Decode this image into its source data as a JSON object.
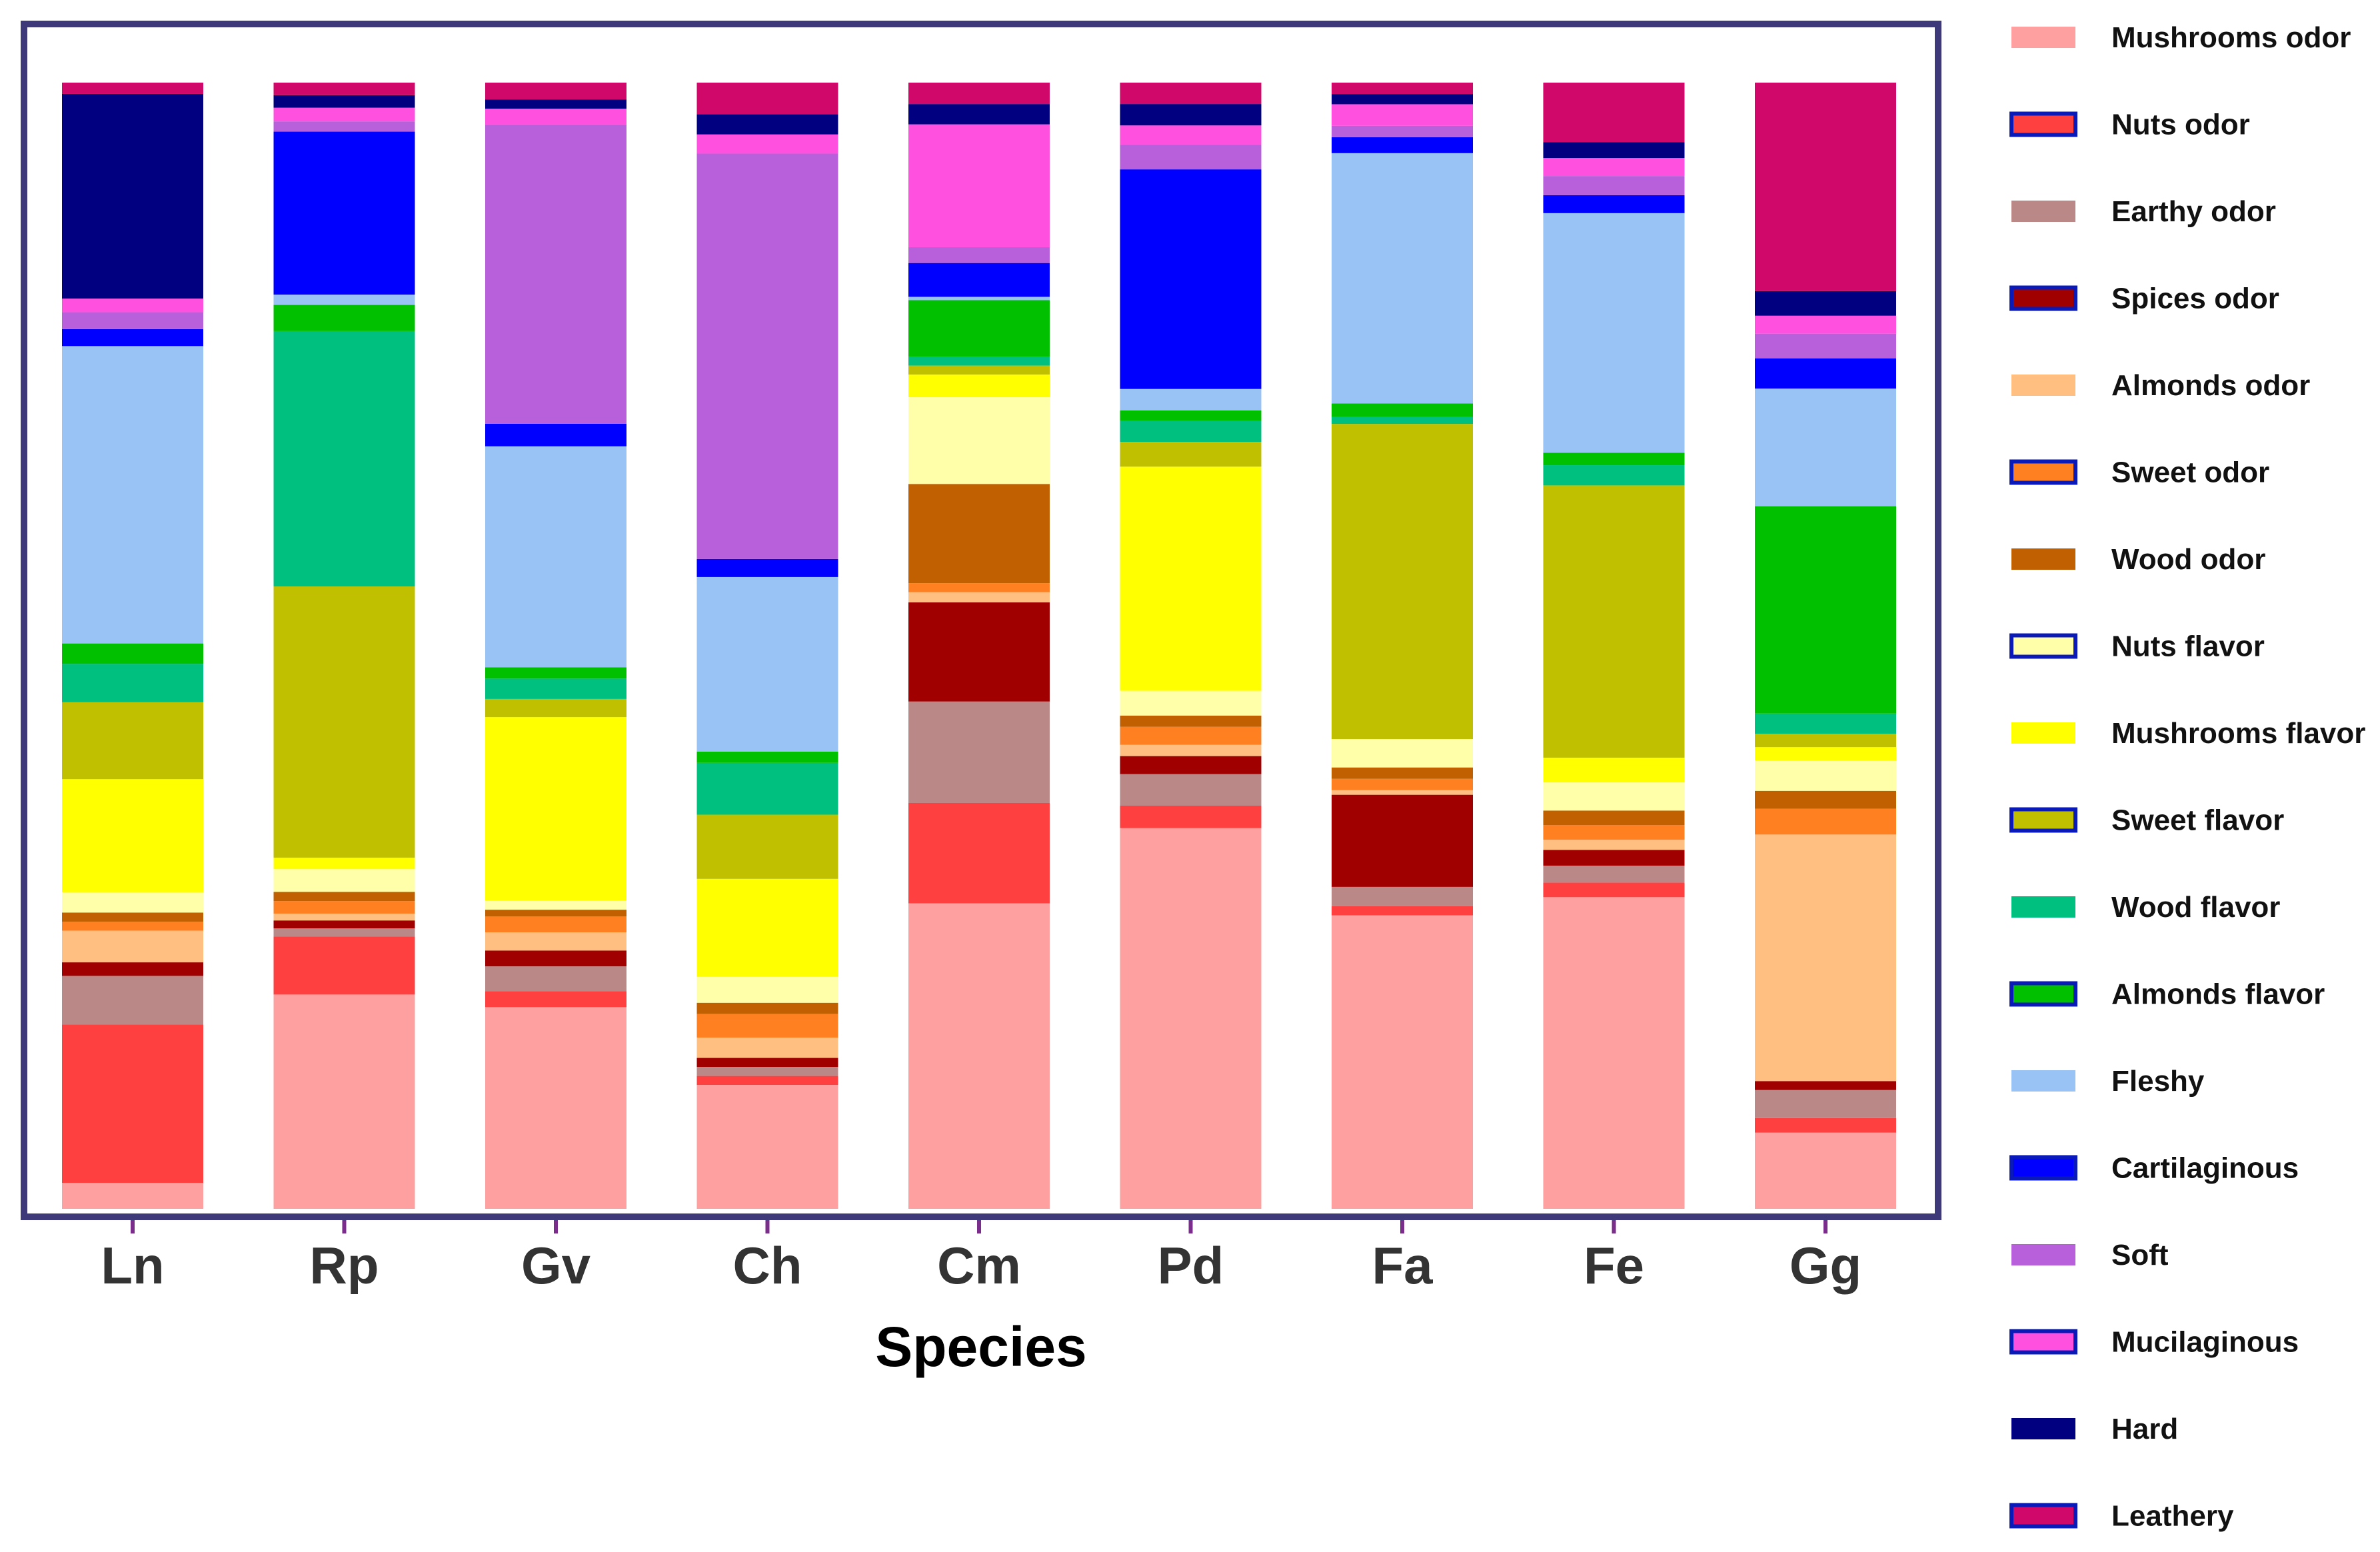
{
  "chart_data": {
    "type": "bar",
    "stacked": true,
    "normalized": true,
    "title": "",
    "xlabel": "Species",
    "ylabel": "",
    "ylim": [
      0,
      1
    ],
    "grid": false,
    "legend_position": "right",
    "categories": [
      "Ln",
      "Rp",
      "Gv",
      "Ch",
      "Cm",
      "Pd",
      "Fa",
      "Fe",
      "Gg"
    ],
    "series": [
      {
        "name": "Mushrooms odor",
        "color": "#FFA0A0",
        "values": [
          0.023,
          0.188,
          0.178,
          0.11,
          0.271,
          0.338,
          0.258,
          0.277,
          0.068
        ]
      },
      {
        "name": "Nuts odor",
        "color": "#FF4040",
        "values": [
          0.14,
          0.051,
          0.014,
          0.008,
          0.089,
          0.02,
          0.008,
          0.013,
          0.013
        ]
      },
      {
        "name": "Earthy odor",
        "color": "#BB8888",
        "values": [
          0.043,
          0.007,
          0.022,
          0.008,
          0.09,
          0.028,
          0.017,
          0.015,
          0.025
        ]
      },
      {
        "name": "Spices odor",
        "color": "#A00000",
        "values": [
          0.012,
          0.007,
          0.014,
          0.008,
          0.088,
          0.016,
          0.081,
          0.014,
          0.008
        ]
      },
      {
        "name": "Almonds odor",
        "color": "#FFBF80",
        "values": [
          0.028,
          0.006,
          0.016,
          0.018,
          0.009,
          0.01,
          0.004,
          0.009,
          0.22
        ]
      },
      {
        "name": "Sweet odor",
        "color": "#FF8020",
        "values": [
          0.008,
          0.011,
          0.014,
          0.021,
          0.008,
          0.016,
          0.01,
          0.013,
          0.023
        ]
      },
      {
        "name": "Wood odor",
        "color": "#C06000",
        "values": [
          0.008,
          0.008,
          0.006,
          0.01,
          0.088,
          0.01,
          0.01,
          0.013,
          0.016
        ]
      },
      {
        "name": "Nuts flavor",
        "color": "#FFFFAA",
        "values": [
          0.018,
          0.02,
          0.008,
          0.023,
          0.077,
          0.022,
          0.025,
          0.025,
          0.027
        ]
      },
      {
        "name": "Mushrooms flavor",
        "color": "#FFFF00",
        "values": [
          0.1,
          0.01,
          0.162,
          0.087,
          0.02,
          0.199,
          0.0,
          0.022,
          0.012
        ]
      },
      {
        "name": "Sweet flavor",
        "color": "#C0C000",
        "values": [
          0.068,
          0.238,
          0.016,
          0.057,
          0.008,
          0.022,
          0.277,
          0.242,
          0.012
        ]
      },
      {
        "name": "Wood flavor",
        "color": "#00C080",
        "values": [
          0.034,
          0.224,
          0.018,
          0.046,
          0.008,
          0.019,
          0.006,
          0.018,
          0.018
        ]
      },
      {
        "name": "Almonds flavor",
        "color": "#00C000",
        "values": [
          0.018,
          0.023,
          0.01,
          0.01,
          0.05,
          0.009,
          0.012,
          0.011,
          0.185
        ]
      },
      {
        "name": "Fleshy",
        "color": "#99C2F5",
        "values": [
          0.263,
          0.009,
          0.195,
          0.155,
          0.003,
          0.019,
          0.22,
          0.213,
          0.105
        ]
      },
      {
        "name": "Cartilaginous",
        "color": "#0000FF",
        "values": [
          0.015,
          0.143,
          0.02,
          0.016,
          0.03,
          0.195,
          0.014,
          0.016,
          0.027
        ]
      },
      {
        "name": "Soft",
        "color": "#B860DC",
        "values": [
          0.015,
          0.009,
          0.264,
          0.36,
          0.014,
          0.022,
          0.01,
          0.017,
          0.022
        ]
      },
      {
        "name": "Mucilaginous",
        "color": "#FF50E0",
        "values": [
          0.012,
          0.012,
          0.014,
          0.017,
          0.109,
          0.017,
          0.019,
          0.016,
          0.016
        ]
      },
      {
        "name": "Hard",
        "color": "#000080",
        "values": [
          0.181,
          0.011,
          0.008,
          0.018,
          0.018,
          0.019,
          0.009,
          0.014,
          0.022
        ]
      },
      {
        "name": "Leathery",
        "color": "#D0086A",
        "values": [
          0.01,
          0.011,
          0.015,
          0.028,
          0.019,
          0.019,
          0.01,
          0.053,
          0.186
        ]
      }
    ]
  }
}
